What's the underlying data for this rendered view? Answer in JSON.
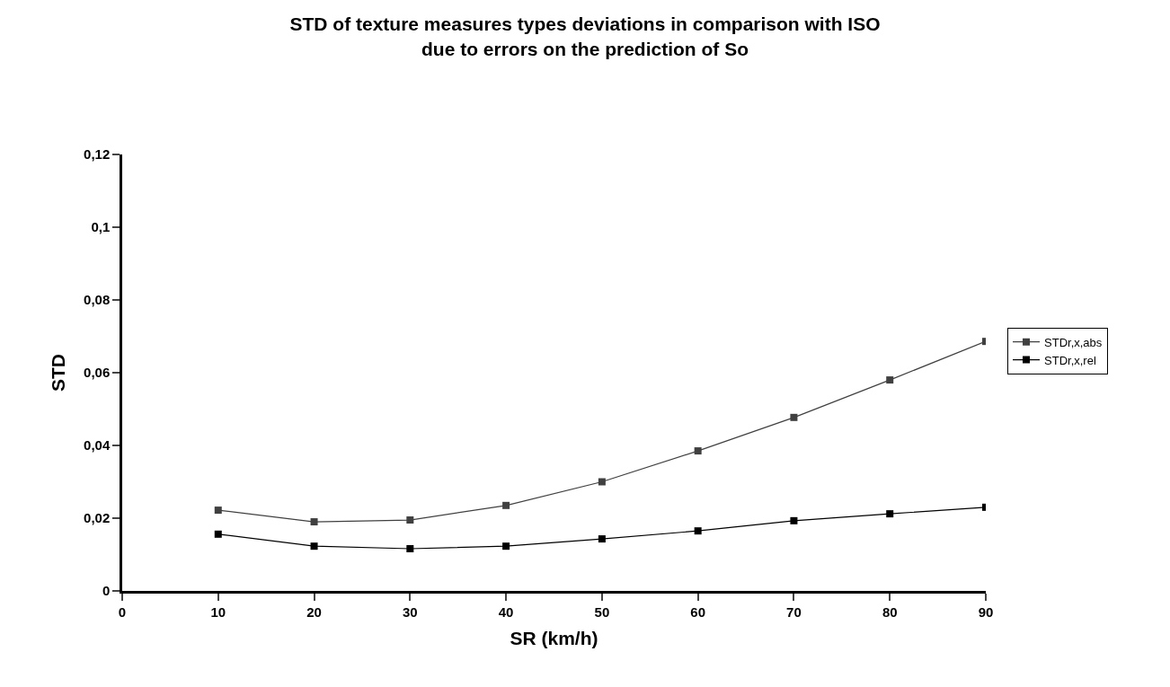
{
  "chart_data": {
    "type": "line",
    "title": "STD of texture measures types deviations in comparison with ISO\ndue to errors on the prediction of So",
    "xlabel": "SR (km/h)",
    "ylabel": "STD",
    "x": [
      10,
      20,
      30,
      40,
      50,
      60,
      70,
      80,
      90
    ],
    "series": [
      {
        "name": "STDr,x,abs",
        "color": "#404040",
        "values": [
          0.0222,
          0.019,
          0.0195,
          0.0235,
          0.03,
          0.0385,
          0.0477,
          0.058,
          0.0686
        ]
      },
      {
        "name": "STDr,x,rel",
        "color": "#000000",
        "values": [
          0.0156,
          0.0123,
          0.0116,
          0.0123,
          0.0143,
          0.0165,
          0.0193,
          0.0212,
          0.023
        ]
      }
    ],
    "xlim": [
      0,
      90
    ],
    "xticks": [
      0,
      10,
      20,
      30,
      40,
      50,
      60,
      70,
      80,
      90
    ],
    "ylim": [
      0,
      0.12
    ],
    "yticks": [
      0,
      {
        "value": 0.02,
        "label": "0,02"
      },
      {
        "value": 0.04,
        "label": "0,04"
      },
      {
        "value": 0.06,
        "label": "0,06"
      },
      {
        "value": 0.08,
        "label": "0,08"
      },
      {
        "value": 0.1,
        "label": "0,1"
      },
      {
        "value": 0.12,
        "label": "0,12"
      }
    ],
    "legend": "right",
    "marker": "square",
    "line_style": "solid"
  }
}
